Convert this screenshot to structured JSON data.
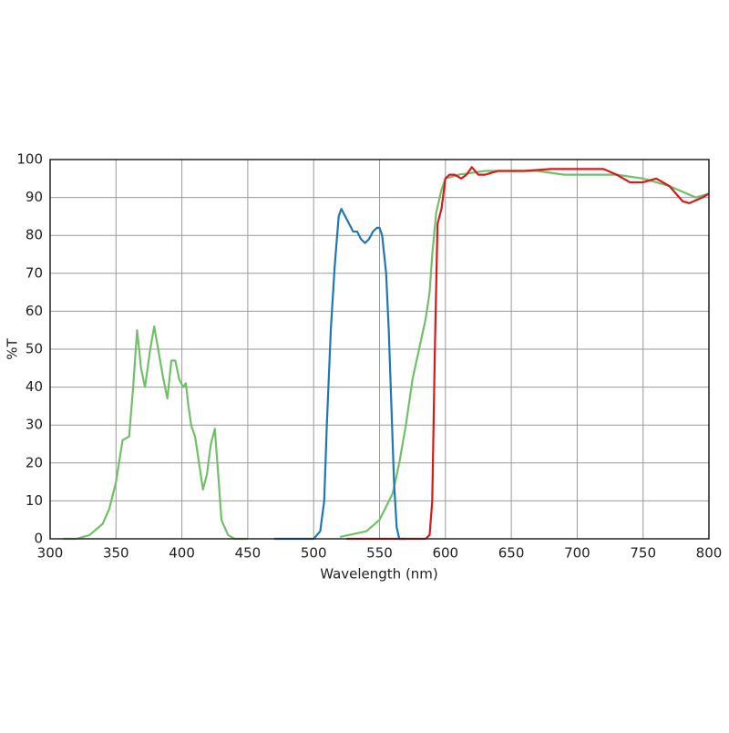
{
  "chart_data": {
    "type": "line",
    "x_label": "Wavelength (nm)",
    "y_label": "%T",
    "xlim": [
      300,
      800
    ],
    "ylim": [
      0,
      100
    ],
    "xticks": [
      300,
      350,
      400,
      450,
      500,
      550,
      600,
      650,
      700,
      750,
      800
    ],
    "yticks": [
      0,
      10,
      20,
      30,
      40,
      50,
      60,
      70,
      80,
      90,
      100
    ],
    "grid": true,
    "series": [
      {
        "color": "#72bf6a",
        "x": [
          310,
          320,
          330,
          340,
          345,
          350,
          355,
          360,
          363,
          366,
          369,
          372,
          376,
          379,
          382,
          386,
          389,
          392,
          395,
          398,
          401,
          403,
          405,
          407,
          410,
          413,
          416,
          419,
          422,
          425,
          428,
          430,
          435,
          440,
          450,
          500,
          520,
          540,
          550,
          560,
          565,
          570,
          575,
          580,
          585,
          588,
          590,
          593,
          597,
          600,
          610,
          630,
          650,
          670,
          690,
          710,
          730,
          750,
          770,
          790,
          800
        ],
        "values": [
          0,
          0,
          1,
          4,
          8,
          15,
          26,
          27,
          40,
          55,
          45,
          40,
          50,
          56,
          50,
          42,
          37,
          47,
          47,
          42,
          40,
          41,
          35,
          30,
          27,
          20,
          13,
          17,
          25,
          29,
          15,
          5,
          1,
          0,
          0,
          null,
          0.5,
          2,
          5,
          12,
          20,
          30,
          42,
          50,
          58,
          65,
          75,
          86,
          92,
          95,
          96,
          97,
          97,
          97,
          96,
          96,
          96,
          95,
          93,
          90,
          91
        ]
      },
      {
        "color": "#1f77b4",
        "x": [
          470,
          490,
          500,
          505,
          508,
          510,
          513,
          516,
          519,
          521,
          524,
          527,
          530,
          533,
          536,
          539,
          542,
          545,
          548,
          550,
          552,
          555,
          557,
          559,
          561,
          563,
          565,
          570
        ],
        "values": [
          0,
          0,
          0,
          2,
          10,
          30,
          55,
          72,
          85,
          87,
          85,
          83,
          81,
          81,
          79,
          78,
          79,
          81,
          82,
          82,
          80,
          70,
          55,
          35,
          15,
          3,
          0,
          0
        ]
      },
      {
        "color": "#d7191c",
        "x": [
          525,
          560,
          585,
          588,
          590,
          592,
          594,
          597,
          600,
          603,
          607,
          612,
          616,
          620,
          625,
          630,
          640,
          660,
          680,
          700,
          720,
          730,
          740,
          750,
          760,
          770,
          780,
          785,
          795,
          800
        ],
        "values": [
          0,
          0,
          0,
          1,
          10,
          50,
          83,
          87,
          95,
          96,
          96,
          95,
          96,
          98,
          96,
          96,
          97,
          97,
          97.5,
          97.5,
          97.5,
          96,
          94,
          94,
          95,
          93,
          89,
          88.5,
          90,
          91
        ]
      }
    ]
  }
}
